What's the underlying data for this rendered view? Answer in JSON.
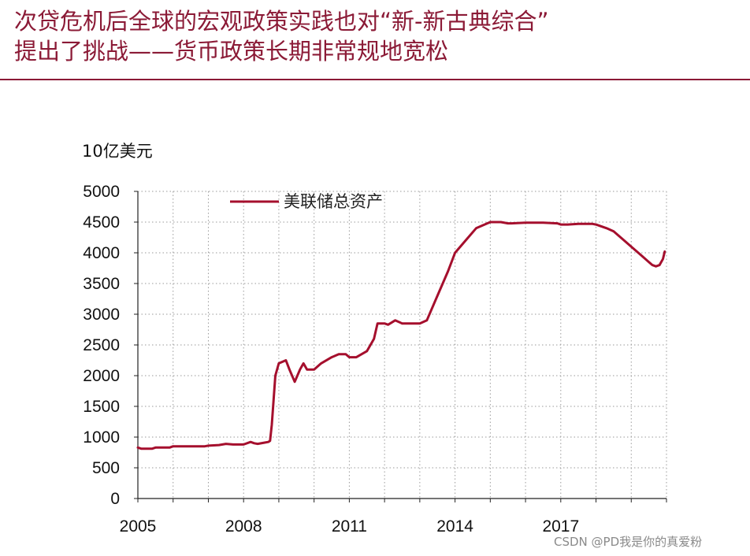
{
  "slide": {
    "title_line1": "次贷危机后全球的宏观政策实践也对“新-新古典综合”",
    "title_line2": "提出了挑战——货币政策长期非常规地宽松",
    "accent_color": "#8b1a36",
    "watermark": "CSDN @PD我是你的真爱粉"
  },
  "chart_data": {
    "type": "line",
    "title": "",
    "unit_label": "10亿美元",
    "xlabel": "",
    "ylabel": "",
    "xlim": [
      2005,
      2020
    ],
    "ylim": [
      0,
      5000
    ],
    "x_ticks": [
      2005,
      2008,
      2011,
      2014,
      2017
    ],
    "x_tick_labels": [
      "2005",
      "2008",
      "2011",
      "2014",
      "2017"
    ],
    "y_ticks": [
      0,
      500,
      1000,
      1500,
      2000,
      2500,
      3000,
      3500,
      4000,
      4500,
      5000
    ],
    "y_tick_labels": [
      "0",
      "500",
      "1000",
      "1500",
      "2000",
      "2500",
      "3000",
      "3500",
      "4000",
      "4500",
      "5000"
    ],
    "grid": true,
    "legend_position": "top",
    "series": [
      {
        "name": "美联储总资产",
        "color": "#a50f2d",
        "x": [
          2005.0,
          2005.1,
          2005.4,
          2005.5,
          2005.9,
          2006.0,
          2006.5,
          2006.9,
          2007.0,
          2007.3,
          2007.5,
          2007.7,
          2007.8,
          2007.9,
          2008.0,
          2008.2,
          2008.3,
          2008.4,
          2008.6,
          2008.7,
          2008.75,
          2008.8,
          2008.9,
          2009.0,
          2009.2,
          2009.3,
          2009.45,
          2009.6,
          2009.7,
          2009.8,
          2010.0,
          2010.2,
          2010.5,
          2010.7,
          2010.9,
          2011.0,
          2011.2,
          2011.5,
          2011.7,
          2011.8,
          2012.0,
          2012.1,
          2012.3,
          2012.5,
          2012.7,
          2012.9,
          2013.0,
          2013.2,
          2013.5,
          2013.8,
          2014.0,
          2014.3,
          2014.6,
          2015.0,
          2015.3,
          2015.5,
          2015.6,
          2016.0,
          2016.5,
          2016.9,
          2017.0,
          2017.2,
          2017.5,
          2017.7,
          2017.9,
          2018.0,
          2018.3,
          2018.5,
          2018.8,
          2019.0,
          2019.3,
          2019.5,
          2019.6,
          2019.7,
          2019.8,
          2019.9,
          2019.95
        ],
        "values": [
          830,
          810,
          810,
          830,
          830,
          850,
          850,
          850,
          860,
          870,
          890,
          880,
          880,
          880,
          880,
          920,
          900,
          890,
          910,
          920,
          940,
          1200,
          2000,
          2200,
          2250,
          2100,
          1900,
          2100,
          2200,
          2100,
          2100,
          2200,
          2300,
          2350,
          2350,
          2300,
          2300,
          2400,
          2600,
          2850,
          2850,
          2830,
          2900,
          2850,
          2850,
          2850,
          2850,
          2900,
          3300,
          3700,
          4000,
          4200,
          4400,
          4500,
          4500,
          4480,
          4480,
          4490,
          4490,
          4480,
          4460,
          4460,
          4470,
          4470,
          4470,
          4460,
          4400,
          4350,
          4200,
          4100,
          3950,
          3850,
          3800,
          3780,
          3800,
          3900,
          4020
        ]
      }
    ]
  }
}
